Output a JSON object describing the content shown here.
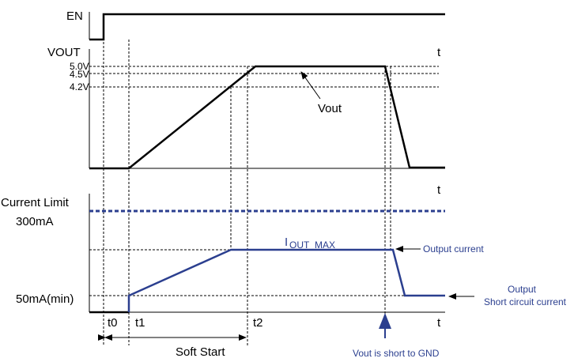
{
  "en": {
    "label": "EN"
  },
  "vout": {
    "label": "VOUT",
    "axis_label": "t",
    "levels": [
      "5.0V",
      "4.5V",
      "4.2V"
    ],
    "annotation": "Vout"
  },
  "current": {
    "axis_label": "t",
    "limit_label": "Current Limit",
    "limit_value": "300mA",
    "min_label": "50mA(min)",
    "max_label": {
      "main": "I",
      "sub": "OUT_MAX"
    },
    "output_current": "Output current",
    "short_circuit": [
      "Output",
      "Short circuit current"
    ]
  },
  "time": {
    "axis_label": "t",
    "markers": [
      "t0",
      "t1",
      "t2"
    ],
    "soft_start": "Soft Start",
    "short_event": "Vout is short to GND"
  }
}
